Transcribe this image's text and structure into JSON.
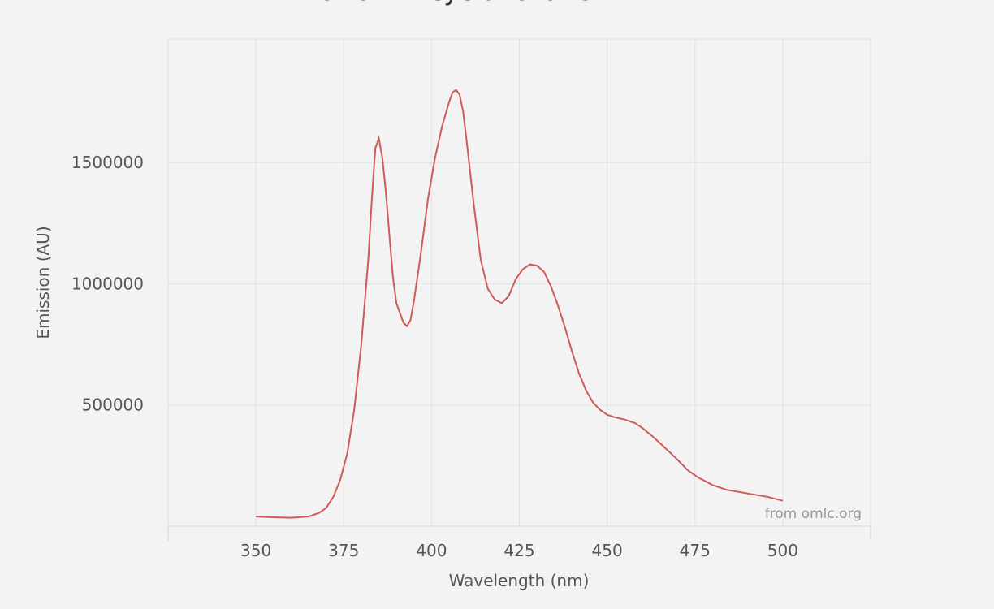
{
  "chart_data": {
    "type": "line",
    "title": "POPOP in cyclohexane",
    "x_label": "Wavelength (nm)",
    "y_label": "Emission (AU)",
    "credit": "from omlc.org",
    "xlim": [
      325,
      525
    ],
    "ylim": [
      0,
      2010000
    ],
    "xticks": [
      350,
      375,
      400,
      425,
      450,
      475,
      500
    ],
    "yticks": [
      500000,
      1000000,
      1500000
    ],
    "grid": true,
    "series": [
      {
        "name": "Emission",
        "color": "#d05a57",
        "x": [
          350,
          355,
          360,
          365,
          368,
          370,
          372,
          374,
          376,
          378,
          380,
          382,
          383,
          384,
          385,
          386,
          387,
          388,
          389,
          390,
          392,
          393,
          394,
          395,
          397,
          399,
          401,
          403,
          405,
          406,
          407,
          408,
          409,
          410,
          412,
          414,
          416,
          418,
          420,
          422,
          424,
          426,
          428,
          430,
          432,
          434,
          436,
          438,
          440,
          442,
          444,
          446,
          448,
          450,
          452,
          455,
          458,
          460,
          463,
          466,
          470,
          473,
          476,
          480,
          484,
          488,
          492,
          496,
          500
        ],
        "values": [
          40000,
          37000,
          35000,
          40000,
          55000,
          75000,
          120000,
          190000,
          300000,
          480000,
          750000,
          1100000,
          1350000,
          1560000,
          1600000,
          1520000,
          1380000,
          1200000,
          1030000,
          920000,
          840000,
          825000,
          850000,
          930000,
          1130000,
          1350000,
          1520000,
          1650000,
          1750000,
          1790000,
          1800000,
          1780000,
          1710000,
          1590000,
          1330000,
          1100000,
          980000,
          935000,
          920000,
          950000,
          1020000,
          1060000,
          1080000,
          1075000,
          1050000,
          990000,
          910000,
          820000,
          720000,
          630000,
          560000,
          510000,
          480000,
          460000,
          450000,
          440000,
          425000,
          405000,
          370000,
          330000,
          275000,
          230000,
          200000,
          170000,
          150000,
          140000,
          130000,
          120000,
          105000
        ]
      }
    ]
  }
}
